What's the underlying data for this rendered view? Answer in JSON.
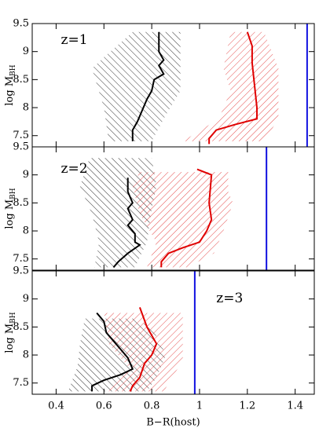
{
  "chart_data": [
    {
      "type": "line",
      "annotation": "z=1",
      "annotation_pos": [
        0.42,
        9.2
      ],
      "ylabel": "log M",
      "ylabel_subscript": "BH",
      "xlim": [
        0.3,
        1.48
      ],
      "ylim": [
        7.3,
        9.5
      ],
      "yticks": [
        7.5,
        8,
        8.5,
        9,
        9.5
      ],
      "regions": [
        {
          "color": "#000000",
          "hatch": "backslash",
          "x": [
            0.72,
            0.92,
            0.92,
            0.85,
            0.8,
            0.62,
            0.6,
            0.55,
            0.6
          ],
          "y": [
            9.35,
            9.35,
            8.3,
            7.8,
            7.4,
            7.4,
            8.0,
            8.7,
            8.9
          ]
        },
        {
          "color": "#e02020",
          "hatch": "slash",
          "x": [
            1.13,
            1.27,
            1.33,
            1.33,
            1.27,
            0.93,
            1.08,
            1.13,
            1.1
          ],
          "y": [
            9.35,
            9.35,
            8.7,
            7.8,
            7.4,
            7.4,
            7.8,
            8.3,
            8.7
          ]
        }
      ],
      "series": [
        {
          "color": "#000000",
          "x": [
            0.83,
            0.83,
            0.85,
            0.83,
            0.85,
            0.81,
            0.8,
            0.78,
            0.76,
            0.74,
            0.72,
            0.72
          ],
          "values": [
            9.35,
            9.0,
            8.85,
            8.75,
            8.6,
            8.5,
            8.3,
            8.15,
            7.95,
            7.75,
            7.6,
            7.4
          ]
        },
        {
          "color": "#e00000",
          "x": [
            1.2,
            1.22,
            1.22,
            1.23,
            1.24,
            1.24,
            1.15,
            1.07,
            1.04,
            1.04
          ],
          "values": [
            9.35,
            9.1,
            8.8,
            8.4,
            8.0,
            7.8,
            7.7,
            7.6,
            7.45,
            7.35
          ]
        }
      ],
      "vline": {
        "color": "#1010e0",
        "x": 1.45
      }
    },
    {
      "type": "line",
      "annotation": "z=2",
      "annotation_pos": [
        0.42,
        9.1
      ],
      "ylabel": "log M",
      "ylabel_subscript": "BH",
      "xlim": [
        0.3,
        1.48
      ],
      "ylim": [
        7.3,
        9.5
      ],
      "yticks": [
        7.5,
        8,
        8.5,
        9,
        9.5
      ],
      "regions": [
        {
          "color": "#000000",
          "hatch": "backslash",
          "x": [
            0.54,
            0.8,
            0.82,
            0.8,
            0.78,
            0.73,
            0.56,
            0.58,
            0.55,
            0.5
          ],
          "y": [
            9.3,
            9.3,
            8.8,
            8.4,
            7.8,
            7.35,
            7.35,
            7.8,
            8.3,
            8.8
          ]
        },
        {
          "color": "#e02020",
          "hatch": "slash",
          "x": [
            0.75,
            1.12,
            1.12,
            1.14,
            1.1,
            1.06,
            0.95,
            0.78,
            0.82,
            0.75,
            0.72
          ],
          "y": [
            9.05,
            9.05,
            8.7,
            8.5,
            8.0,
            7.6,
            7.35,
            7.35,
            7.8,
            8.3,
            8.8
          ]
        }
      ],
      "series": [
        {
          "color": "#000000",
          "x": [
            0.7,
            0.7,
            0.72,
            0.7,
            0.72,
            0.7,
            0.73,
            0.73,
            0.75,
            0.7,
            0.66,
            0.64
          ],
          "values": [
            8.95,
            8.7,
            8.5,
            8.4,
            8.2,
            8.1,
            7.95,
            7.8,
            7.75,
            7.6,
            7.45,
            7.35
          ]
        },
        {
          "color": "#e00000",
          "x": [
            0.99,
            1.05,
            1.04,
            1.05,
            1.03,
            1.0,
            0.93,
            0.87,
            0.84,
            0.84
          ],
          "values": [
            9.1,
            9.0,
            8.5,
            8.2,
            8.0,
            7.8,
            7.7,
            7.6,
            7.45,
            7.35
          ]
        }
      ],
      "vline": {
        "color": "#1010e0",
        "x": 1.28
      }
    },
    {
      "type": "line",
      "annotation": "z=3",
      "annotation_pos": [
        1.07,
        9.0
      ],
      "ylabel": "log M",
      "ylabel_subscript": "BH",
      "xlabel": "B−R(host)",
      "xlim": [
        0.3,
        1.48
      ],
      "ylim": [
        7.3,
        9.5
      ],
      "yticks": [
        7.5,
        8,
        8.5,
        9,
        9.5
      ],
      "xticks": [
        0.4,
        0.6,
        0.8,
        1,
        1.2,
        1.4
      ],
      "regions": [
        {
          "color": "#000000",
          "hatch": "backslash",
          "x": [
            0.52,
            0.72,
            0.8,
            0.86,
            0.82,
            0.78,
            0.45,
            0.49,
            0.5
          ],
          "y": [
            8.65,
            8.65,
            8.5,
            8.0,
            7.6,
            7.35,
            7.35,
            7.8,
            8.2
          ]
        },
        {
          "color": "#e02020",
          "hatch": "slash",
          "x": [
            0.6,
            0.93,
            0.93,
            0.93,
            0.9,
            0.85,
            0.62,
            0.7,
            0.62
          ],
          "y": [
            8.75,
            8.75,
            8.3,
            7.9,
            7.7,
            7.35,
            7.35,
            7.8,
            8.2
          ]
        }
      ],
      "series": [
        {
          "color": "#000000",
          "x": [
            0.57,
            0.6,
            0.61,
            0.64,
            0.67,
            0.7,
            0.72,
            0.67,
            0.6,
            0.55,
            0.55
          ],
          "values": [
            8.75,
            8.6,
            8.4,
            8.25,
            8.1,
            7.95,
            7.75,
            7.65,
            7.55,
            7.45,
            7.35
          ]
        },
        {
          "color": "#e00000",
          "x": [
            0.75,
            0.78,
            0.82,
            0.8,
            0.77,
            0.75,
            0.72,
            0.71
          ],
          "values": [
            8.85,
            8.5,
            8.2,
            8.0,
            7.85,
            7.6,
            7.45,
            7.35
          ]
        }
      ],
      "vline": {
        "color": "#1010e0",
        "x": 0.98
      }
    }
  ]
}
